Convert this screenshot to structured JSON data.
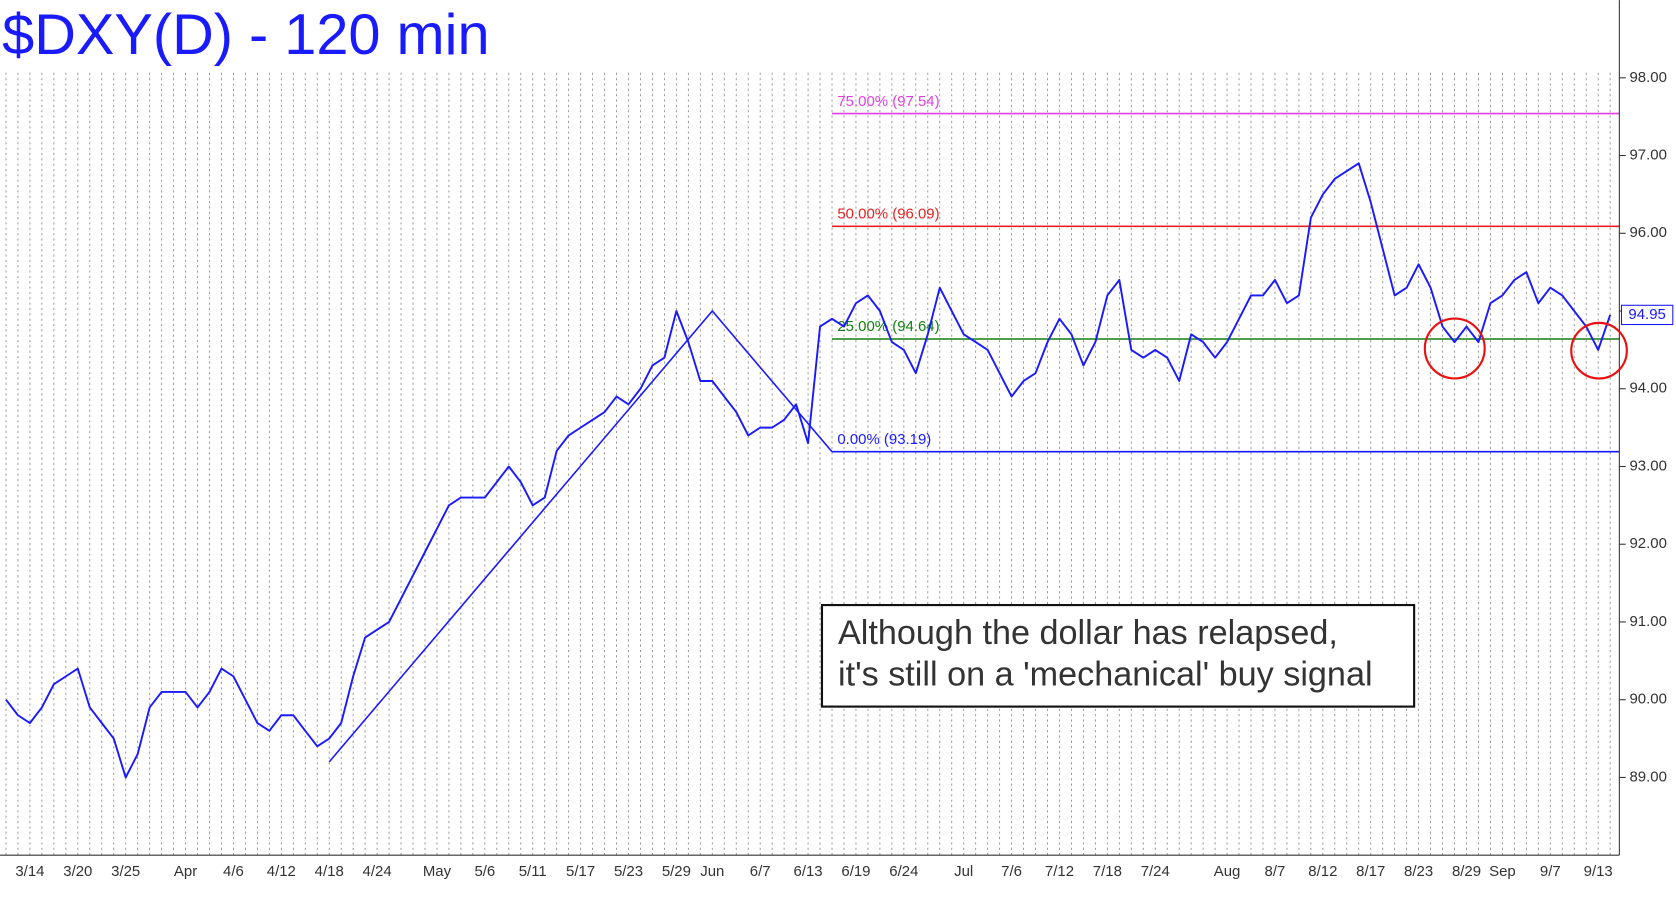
{
  "chart_data": {
    "type": "line",
    "title": "$DXY(D) - 120 min",
    "color": "#1a1aff",
    "categories": [
      null,
      null,
      "3/14",
      null,
      null,
      null,
      "3/20",
      null,
      null,
      null,
      "3/25",
      null,
      null,
      null,
      null,
      "Apr",
      null,
      null,
      null,
      "4/6",
      null,
      null,
      null,
      "4/12",
      null,
      null,
      null,
      "4/18",
      null,
      null,
      null,
      "4/24",
      null,
      null,
      null,
      null,
      "May",
      null,
      null,
      null,
      "5/6",
      null,
      null,
      null,
      "5/11",
      null,
      null,
      null,
      "5/17",
      null,
      null,
      null,
      "5/23",
      null,
      null,
      null,
      "5/29",
      null,
      null,
      "Jun",
      null,
      null,
      null,
      "6/7",
      null,
      null,
      null,
      "6/13",
      null,
      null,
      null,
      "6/19",
      null,
      null,
      null,
      "6/24",
      null,
      null,
      null,
      null,
      "Jul",
      null,
      null,
      null,
      "7/6",
      null,
      null,
      null,
      "7/12",
      null,
      null,
      null,
      "7/18",
      null,
      null,
      null,
      "7/24",
      null,
      null,
      null,
      null,
      null,
      "Aug",
      null,
      null,
      null,
      "8/7",
      null,
      null,
      null,
      "8/12",
      null,
      null,
      null,
      "8/17",
      null,
      null,
      null,
      "8/23",
      null,
      null,
      null,
      "8/29",
      null,
      null,
      "Sep",
      null,
      null,
      null,
      "9/7",
      null,
      null,
      null,
      "9/13",
      null
    ],
    "values": [
      90.0,
      89.8,
      89.7,
      89.9,
      90.2,
      90.3,
      90.4,
      89.9,
      89.7,
      89.5,
      89.0,
      89.3,
      89.9,
      90.1,
      90.1,
      90.1,
      89.9,
      90.1,
      90.4,
      90.3,
      90.0,
      89.7,
      89.6,
      89.8,
      89.8,
      89.6,
      89.4,
      89.5,
      89.7,
      90.3,
      90.8,
      90.9,
      91.0,
      91.3,
      91.6,
      91.9,
      92.2,
      92.5,
      92.6,
      92.6,
      92.6,
      92.8,
      93.0,
      92.8,
      92.5,
      92.6,
      93.2,
      93.4,
      93.5,
      93.6,
      93.7,
      93.9,
      93.8,
      94.0,
      94.3,
      94.4,
      95.0,
      94.6,
      94.1,
      94.1,
      93.9,
      93.7,
      93.4,
      93.5,
      93.5,
      93.6,
      93.8,
      93.3,
      94.8,
      94.9,
      94.8,
      95.1,
      95.2,
      95.0,
      94.6,
      94.5,
      94.2,
      94.7,
      95.3,
      95.0,
      94.7,
      94.6,
      94.5,
      94.2,
      93.9,
      94.1,
      94.2,
      94.6,
      94.9,
      94.7,
      94.3,
      94.6,
      95.2,
      95.4,
      94.5,
      94.4,
      94.5,
      94.4,
      94.1,
      94.7,
      94.6,
      94.4,
      94.6,
      94.9,
      95.2,
      95.2,
      95.4,
      95.1,
      95.2,
      96.2,
      96.5,
      96.7,
      96.8,
      96.9,
      96.4,
      95.8,
      95.2,
      95.3,
      95.6,
      95.3,
      94.8,
      94.6,
      94.8,
      94.6,
      95.1,
      95.2,
      95.4,
      95.5,
      95.1,
      95.3,
      95.2,
      95.0,
      94.8,
      94.5,
      94.95
    ],
    "ylim": [
      88,
      99
    ],
    "yticks": [
      {
        "value": 89,
        "label": "89.00"
      },
      {
        "value": 90,
        "label": "90.00"
      },
      {
        "value": 91,
        "label": "91.00"
      },
      {
        "value": 92,
        "label": "92.00"
      },
      {
        "value": 93,
        "label": "93.00"
      },
      {
        "value": 94,
        "label": "94.00"
      },
      {
        "value": 95,
        "label": "95.00"
      },
      {
        "value": 96,
        "label": "96.00"
      },
      {
        "value": 97,
        "label": "97.00"
      },
      {
        "value": 98,
        "label": "98.00"
      }
    ],
    "fib_levels": [
      {
        "label": "75.00% (97.54)",
        "value": 97.54,
        "color": "#e040e0"
      },
      {
        "label": "50.00% (96.09)",
        "value": 96.09,
        "color": "#e82020"
      },
      {
        "label": "25.00% (94.64)",
        "value": 94.64,
        "color": "#108010"
      },
      {
        "label": "0.00% (93.19)",
        "value": 93.19,
        "color": "#1a1aff"
      }
    ],
    "pattern_line": {
      "values": [
        89.2,
        95.0,
        93.19
      ],
      "color": "#1a1aff"
    },
    "annotation": [
      "Although the dollar has relapsed,",
      "it's still on a 'mechanical' buy signal"
    ]
  }
}
